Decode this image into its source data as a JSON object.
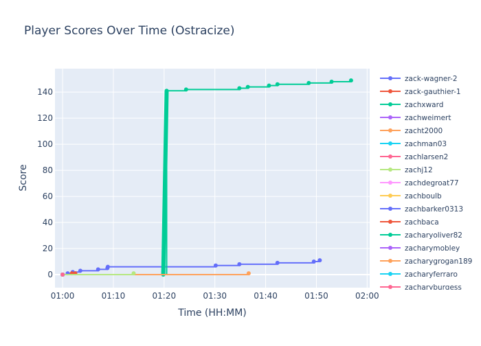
{
  "chart_data": {
    "type": "line",
    "title": "Player Scores Over Time (Ostracize)",
    "xlabel": "Time (HH:MM)",
    "ylabel": "Score",
    "xlim": [
      "00:58:30",
      "02:00:30"
    ],
    "ylim": [
      -10,
      158
    ],
    "x_ticks": [
      "01:00",
      "01:10",
      "01:20",
      "01:30",
      "01:40",
      "01:50",
      "02:00"
    ],
    "y_ticks": [
      0,
      20,
      40,
      60,
      80,
      100,
      120,
      140
    ],
    "grid": true,
    "legend_position": "right",
    "series": [
      {
        "name": "zack-wagner-2",
        "color": "#636efa",
        "points": [
          [
            "01:00:00",
            0
          ],
          [
            "01:01:00",
            1
          ],
          [
            "01:02:00",
            2
          ],
          [
            "01:03:30",
            3
          ],
          [
            "01:07:00",
            4
          ],
          [
            "01:08:50",
            5
          ],
          [
            "01:08:55",
            6
          ],
          [
            "01:30:10",
            7
          ],
          [
            "01:34:50",
            8
          ],
          [
            "01:42:20",
            9
          ],
          [
            "01:49:30",
            10
          ],
          [
            "01:50:40",
            11
          ]
        ]
      },
      {
        "name": "zack-gauthier-1",
        "color": "#ef553b",
        "points": [
          [
            "01:00:00",
            0
          ],
          [
            "01:01:50",
            1
          ],
          [
            "01:02:30",
            1
          ]
        ]
      },
      {
        "name": "zachxward",
        "color": "#00cc96",
        "points": [
          [
            "01:19:50",
            0
          ],
          [
            "01:20:30",
            141
          ],
          [
            "01:24:20",
            142
          ],
          [
            "01:34:50",
            143
          ],
          [
            "01:36:30",
            144
          ],
          [
            "01:40:40",
            145
          ],
          [
            "01:42:20",
            146
          ],
          [
            "01:48:30",
            147
          ],
          [
            "01:53:00",
            148
          ],
          [
            "01:56:50",
            149
          ]
        ]
      },
      {
        "name": "zachweimert",
        "color": "#ab63fa",
        "points": [
          [
            "01:00:00",
            0
          ]
        ]
      },
      {
        "name": "zacht2000",
        "color": "#ffa15a",
        "points": [
          [
            "01:00:00",
            0
          ],
          [
            "01:36:40",
            1
          ]
        ]
      },
      {
        "name": "zachman03",
        "color": "#19d3f3",
        "points": [
          [
            "01:00:00",
            0
          ]
        ]
      },
      {
        "name": "zachlarsen2",
        "color": "#ff6692",
        "points": [
          [
            "01:00:00",
            0
          ]
        ]
      },
      {
        "name": "zachj12",
        "color": "#b6e880",
        "points": [
          [
            "01:00:00",
            0
          ],
          [
            "01:14:00",
            1
          ]
        ]
      },
      {
        "name": "zachdegroat77",
        "color": "#ff97ff",
        "points": [
          [
            "01:00:00",
            0
          ]
        ]
      },
      {
        "name": "zachboulb",
        "color": "#fecb52",
        "points": [
          [
            "01:00:00",
            0
          ]
        ]
      },
      {
        "name": "zachbarker0313",
        "color": "#636efa",
        "points": [
          [
            "01:00:00",
            0
          ]
        ]
      },
      {
        "name": "zachbaca",
        "color": "#ef553b",
        "points": [
          [
            "01:00:00",
            0
          ]
        ]
      },
      {
        "name": "zacharyoliver82",
        "color": "#00cc96",
        "points": [
          [
            "01:00:00",
            0
          ]
        ]
      },
      {
        "name": "zacharymobley",
        "color": "#ab63fa",
        "points": [
          [
            "01:00:00",
            0
          ]
        ]
      },
      {
        "name": "zacharygrogan189",
        "color": "#ffa15a",
        "points": [
          [
            "01:00:00",
            0
          ]
        ]
      },
      {
        "name": "zacharyferraro",
        "color": "#19d3f3",
        "points": [
          [
            "01:00:00",
            0
          ]
        ]
      },
      {
        "name": "zacharyburgess",
        "color": "#ff6692",
        "points": [
          [
            "01:00:00",
            0
          ]
        ]
      }
    ]
  }
}
